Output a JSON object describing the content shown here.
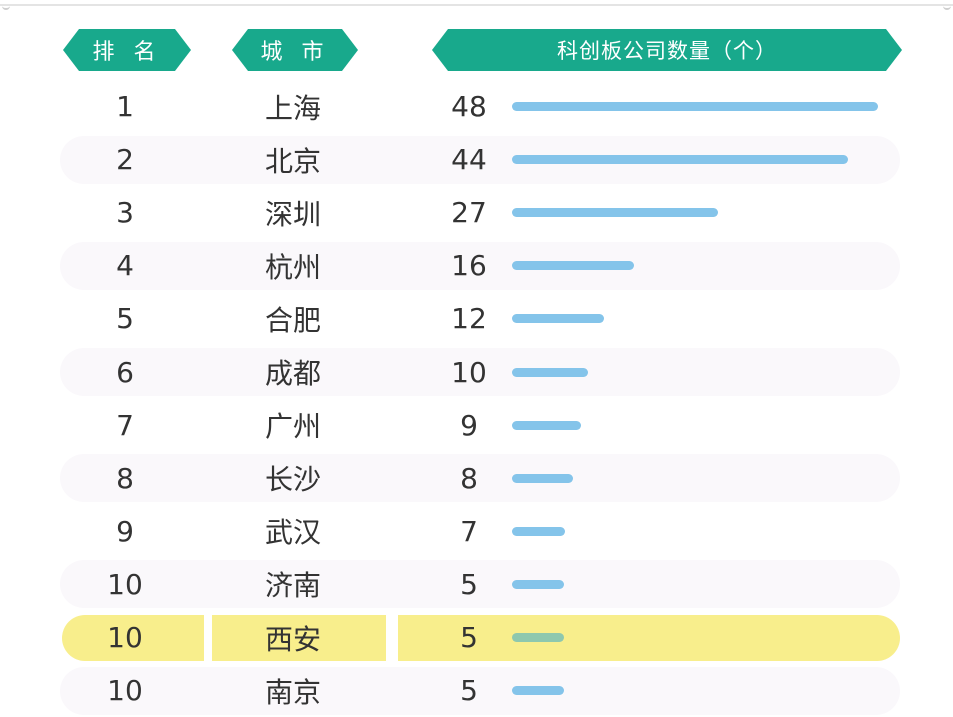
{
  "headers": {
    "rank": "排 名",
    "city": "城 市",
    "count": "科创板公司数量（个）"
  },
  "chart_data": {
    "type": "bar",
    "orientation": "horizontal",
    "categories": [
      "上海",
      "北京",
      "深圳",
      "杭州",
      "合肥",
      "成都",
      "广州",
      "长沙",
      "武汉",
      "济南",
      "西安",
      "南京"
    ],
    "ranks": [
      "1",
      "2",
      "3",
      "4",
      "5",
      "6",
      "7",
      "8",
      "9",
      "10",
      "10",
      "10"
    ],
    "values": [
      48,
      44,
      27,
      16,
      12,
      10,
      9,
      8,
      7,
      5,
      5,
      5
    ],
    "highlight_index": 10,
    "xlim": [
      0,
      48
    ],
    "colors": {
      "header": "#18a98c",
      "bar": "#84c4ea",
      "highlight_row": "#f8ee8c",
      "highlight_bar": "#8ec8ae",
      "stripe": "#faf8fb"
    }
  }
}
